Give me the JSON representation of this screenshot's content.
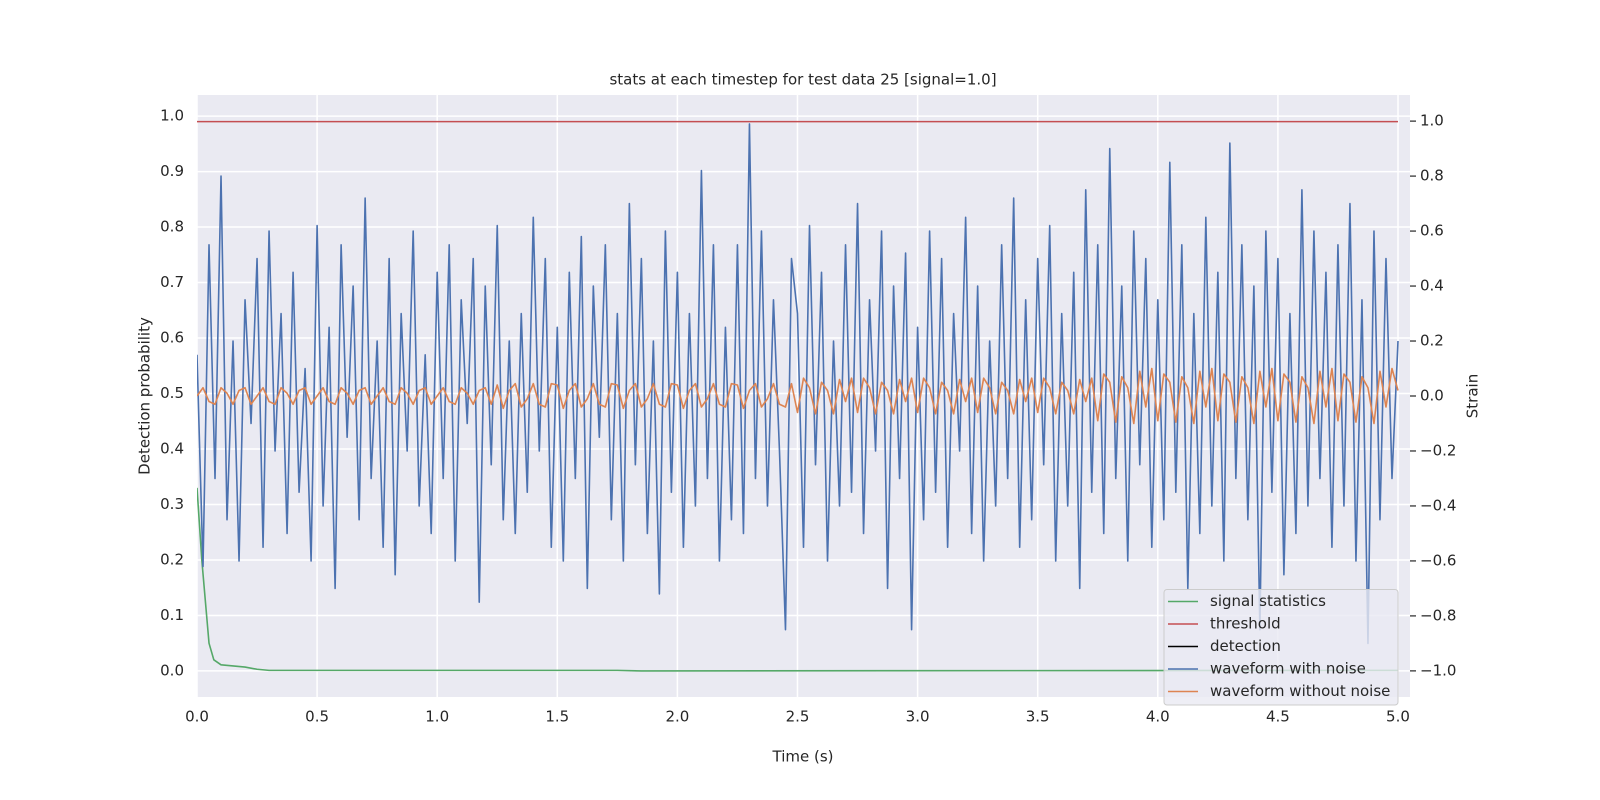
{
  "chart_data": {
    "type": "line",
    "title": "stats at each timestep for test data 25 [signal=1.0]",
    "xlabel": "Time (s)",
    "ylabel": "Detection probability",
    "y2label": "Strain",
    "xlim": [
      0,
      5.05
    ],
    "ylim": [
      -0.047,
      1.038
    ],
    "y2lim": [
      -1.095,
      1.095
    ],
    "xticks": [
      {
        "value": 0,
        "label": "0.0"
      },
      0.5,
      {
        "value": 1,
        "label": "1.0"
      },
      1.5,
      {
        "value": 2,
        "label": "2.0"
      },
      2.5,
      {
        "value": 3,
        "label": "3.0"
      },
      3.5,
      {
        "value": 4,
        "label": "4.0"
      },
      4.5,
      {
        "value": 5,
        "label": "5.0"
      }
    ],
    "yticks": [
      {
        "value": 0,
        "label": "0.0"
      },
      0.1,
      0.2,
      0.3,
      0.4,
      0.5,
      0.6,
      0.7,
      0.8,
      0.9,
      {
        "value": 1,
        "label": "1.0"
      }
    ],
    "y2ticks": [
      {
        "value": -1,
        "label": "−1.0"
      },
      {
        "value": -0.8,
        "label": "−0.8"
      },
      {
        "value": -0.6,
        "label": "−0.6"
      },
      {
        "value": -0.4,
        "label": "−0.4"
      },
      {
        "value": -0.2,
        "label": "−0.2"
      },
      {
        "value": 0,
        "label": "0.0"
      },
      0.2,
      0.4,
      0.6,
      0.8,
      {
        "value": 1,
        "label": "1.0"
      }
    ],
    "grid": true,
    "legend": "lower right",
    "x": [
      0,
      0.025,
      0.05,
      0.075,
      0.1,
      0.125,
      0.15,
      0.175,
      0.2,
      0.225,
      0.25,
      0.275,
      0.3,
      0.325,
      0.35,
      0.375,
      0.4,
      0.425,
      0.45,
      0.475,
      0.5,
      0.525,
      0.55,
      0.575,
      0.6,
      0.625,
      0.65,
      0.675,
      0.7,
      0.725,
      0.75,
      0.775,
      0.8,
      0.825,
      0.85,
      0.875,
      0.9,
      0.925,
      0.95,
      0.975,
      1,
      1.025,
      1.05,
      1.075,
      1.1,
      1.125,
      1.15,
      1.175,
      1.2,
      1.225,
      1.25,
      1.275,
      1.3,
      1.325,
      1.35,
      1.375,
      1.4,
      1.425,
      1.45,
      1.475,
      1.5,
      1.525,
      1.55,
      1.575,
      1.6,
      1.625,
      1.65,
      1.675,
      1.7,
      1.725,
      1.75,
      1.775,
      1.8,
      1.825,
      1.85,
      1.875,
      1.9,
      1.925,
      1.95,
      1.975,
      2,
      2.025,
      2.05,
      2.075,
      2.1,
      2.125,
      2.15,
      2.175,
      2.2,
      2.225,
      2.25,
      2.275,
      2.3,
      2.325,
      2.35,
      2.375,
      2.4,
      2.425,
      2.45,
      2.475,
      2.5,
      2.525,
      2.55,
      2.575,
      2.6,
      2.625,
      2.65,
      2.675,
      2.7,
      2.725,
      2.75,
      2.775,
      2.8,
      2.825,
      2.85,
      2.875,
      2.9,
      2.925,
      2.95,
      2.975,
      3,
      3.025,
      3.05,
      3.075,
      3.1,
      3.125,
      3.15,
      3.175,
      3.2,
      3.225,
      3.25,
      3.275,
      3.3,
      3.325,
      3.35,
      3.375,
      3.4,
      3.425,
      3.45,
      3.475,
      3.5,
      3.525,
      3.55,
      3.575,
      3.6,
      3.625,
      3.65,
      3.675,
      3.7,
      3.725,
      3.75,
      3.775,
      3.8,
      3.825,
      3.85,
      3.875,
      3.9,
      3.925,
      3.95,
      3.975,
      4,
      4.025,
      4.05,
      4.075,
      4.1,
      4.125,
      4.15,
      4.175,
      4.2,
      4.225,
      4.25,
      4.275,
      4.3,
      4.325,
      4.35,
      4.375,
      4.4,
      4.425,
      4.45,
      4.475,
      4.5,
      4.525,
      4.55,
      4.575,
      4.6,
      4.625,
      4.65,
      4.675,
      4.7,
      4.725,
      4.75,
      4.775,
      4.8,
      4.825,
      4.85,
      4.875,
      4.9,
      4.925,
      4.95,
      4.975,
      5
    ],
    "series": [
      {
        "name": "signal statistics",
        "color": "#55a868",
        "x": [
          0,
          0.02,
          0.04,
          0.05,
          0.07,
          0.1,
          0.15,
          0.2,
          0.25,
          0.3,
          1.75,
          1.85,
          4.8,
          5
        ],
        "values": [
          0.33,
          0.2,
          0.1,
          0.05,
          0.02,
          0.011,
          0.009,
          0.007,
          0.003,
          0.001,
          0.001,
          0,
          0.001,
          0.001
        ]
      },
      {
        "name": "threshold",
        "color": "#c44e52",
        "x": [
          0,
          5
        ],
        "values": [
          0.99,
          0.99
        ]
      },
      {
        "name": "detection",
        "color": "#000000",
        "x": [],
        "values": []
      },
      {
        "name": "waveform with noise",
        "color": "#4c72b0",
        "axis": "y2",
        "values": [
          0.15,
          -0.62,
          0.55,
          -0.3,
          0.8,
          -0.45,
          0.2,
          -0.6,
          0.35,
          -0.1,
          0.5,
          -0.55,
          0.6,
          -0.2,
          0.3,
          -0.5,
          0.45,
          -0.35,
          0.1,
          -0.6,
          0.62,
          -0.4,
          0.25,
          -0.7,
          0.55,
          -0.15,
          0.4,
          -0.45,
          0.72,
          -0.3,
          0.2,
          -0.55,
          0.5,
          -0.65,
          0.3,
          -0.2,
          0.6,
          -0.4,
          0.15,
          -0.5,
          0.45,
          -0.3,
          0.55,
          -0.6,
          0.35,
          -0.1,
          0.5,
          -0.75,
          0.4,
          -0.25,
          0.62,
          -0.45,
          0.2,
          -0.5,
          0.3,
          -0.35,
          0.65,
          -0.2,
          0.5,
          -0.55,
          0.25,
          -0.6,
          0.45,
          -0.3,
          0.58,
          -0.7,
          0.4,
          -0.15,
          0.55,
          -0.45,
          0.3,
          -0.6,
          0.7,
          -0.25,
          0.5,
          -0.5,
          0.2,
          -0.72,
          0.6,
          -0.35,
          0.45,
          -0.55,
          0.3,
          -0.4,
          0.82,
          -0.3,
          0.55,
          -0.6,
          0.25,
          -0.45,
          0.55,
          -0.5,
          0.99,
          -0.3,
          0.6,
          -0.4,
          0.35,
          -0.2,
          -0.85,
          0.5,
          0.3,
          -0.55,
          0.62,
          -0.25,
          0.45,
          -0.6,
          0.2,
          -0.4,
          0.55,
          -0.35,
          0.7,
          -0.5,
          0.35,
          -0.2,
          0.6,
          -0.7,
          0.4,
          -0.3,
          0.52,
          -0.85,
          0.25,
          -0.45,
          0.6,
          -0.35,
          0.5,
          -0.55,
          0.3,
          -0.2,
          0.65,
          -0.5,
          0.4,
          -0.6,
          0.2,
          -0.4,
          0.55,
          -0.3,
          0.72,
          -0.55,
          0.35,
          -0.45,
          0.5,
          -0.25,
          0.62,
          -0.6,
          0.3,
          -0.4,
          0.45,
          -0.7,
          0.75,
          -0.35,
          0.55,
          -0.5,
          0.9,
          -0.3,
          0.4,
          -0.6,
          0.6,
          -0.25,
          0.5,
          -0.55,
          0.35,
          -0.45,
          0.85,
          -0.35,
          0.55,
          -0.7,
          0.3,
          -0.5,
          0.65,
          -0.4,
          0.45,
          -0.6,
          0.92,
          -0.3,
          0.55,
          -0.45,
          0.4,
          -0.85,
          0.6,
          -0.35,
          0.5,
          -0.65,
          0.3,
          -0.5,
          0.75,
          -0.4,
          0.6,
          -0.3,
          0.45,
          -0.55,
          0.55,
          -0.4,
          0.7,
          -0.6,
          0.35,
          -0.9,
          0.6,
          -0.45,
          0.5,
          -0.3,
          0.2
        ]
      },
      {
        "name": "waveform without noise",
        "color": "#dd8452",
        "axis": "y2",
        "values": [
          0,
          0.03,
          -0.02,
          -0.03,
          0.03,
          0.01,
          -0.03,
          0.02,
          0.03,
          -0.03,
          0,
          0.03,
          -0.02,
          -0.03,
          0.03,
          0.01,
          -0.03,
          0.02,
          0.03,
          -0.03,
          0,
          0.03,
          -0.02,
          -0.03,
          0.03,
          0.01,
          -0.03,
          0.02,
          0.03,
          -0.03,
          0,
          0.03,
          -0.02,
          -0.03,
          0.03,
          0.01,
          -0.03,
          0.02,
          0.03,
          -0.03,
          0,
          0.03,
          -0.02,
          -0.03,
          0.03,
          0.01,
          -0.03,
          0.02,
          0.03,
          -0.03,
          0.04,
          -0.045,
          0.02,
          0.045,
          -0.04,
          -0.01,
          0.045,
          -0.03,
          -0.04,
          0.045,
          0.04,
          -0.045,
          0.02,
          0.045,
          -0.04,
          -0.01,
          0.045,
          -0.03,
          -0.04,
          0.045,
          0.04,
          -0.045,
          0.02,
          0.045,
          -0.04,
          -0.01,
          0.045,
          -0.03,
          -0.04,
          0.045,
          0.04,
          -0.045,
          0.02,
          0.045,
          -0.04,
          -0.01,
          0.045,
          -0.03,
          -0.04,
          0.045,
          0.04,
          -0.045,
          0.02,
          0.045,
          -0.04,
          -0.01,
          0.045,
          -0.03,
          -0.04,
          0.045,
          -0.06,
          0.065,
          0.03,
          -0.065,
          0.05,
          0.02,
          -0.065,
          0.06,
          -0.02,
          0.065,
          -0.06,
          0.065,
          0.03,
          -0.065,
          0.05,
          0.02,
          -0.065,
          0.06,
          -0.02,
          0.065,
          -0.06,
          0.065,
          0.03,
          -0.065,
          0.05,
          0.02,
          -0.065,
          0.06,
          -0.02,
          0.065,
          -0.06,
          0.065,
          0.03,
          -0.065,
          0.05,
          0.02,
          -0.065,
          0.06,
          -0.02,
          0.065,
          -0.06,
          0.065,
          0.03,
          -0.065,
          0.05,
          0.02,
          -0.065,
          0.06,
          -0.02,
          0.065,
          -0.09,
          0.08,
          0.05,
          -0.095,
          0.07,
          0.03,
          -0.1,
          0.09,
          -0.04,
          0.1,
          -0.09,
          0.08,
          0.05,
          -0.095,
          0.07,
          0.03,
          -0.1,
          0.09,
          -0.04,
          0.1,
          -0.09,
          0.08,
          0.05,
          -0.095,
          0.07,
          0.03,
          -0.1,
          0.09,
          -0.04,
          0.1,
          -0.09,
          0.08,
          0.05,
          -0.095,
          0.07,
          0.03,
          -0.1,
          0.09,
          -0.04,
          0.1,
          -0.09,
          0.08,
          0.05,
          -0.095,
          0.07,
          0.03,
          -0.1,
          0.09,
          -0.04,
          0.1,
          0.02
        ]
      }
    ]
  }
}
